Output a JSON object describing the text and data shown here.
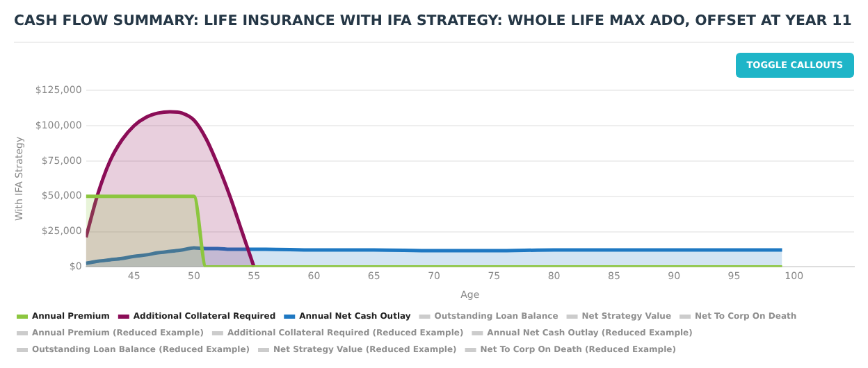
{
  "chart_data": {
    "type": "area",
    "title": "CASH FLOW SUMMARY: LIFE INSURANCE WITH IFA STRATEGY: WHOLE LIFE MAX ADO, OFFSET AT YEAR 11",
    "xlabel": "Age",
    "ylabel": "With IFA Strategy",
    "annotations": [
      "TOGGLE CALLOUTS"
    ],
    "x": [
      41,
      42,
      43,
      44,
      45,
      46,
      47,
      48,
      49,
      50,
      51,
      52,
      53,
      54,
      55,
      56,
      60,
      65,
      70,
      75,
      80,
      85,
      90,
      95,
      99
    ],
    "xlim": [
      41,
      105
    ],
    "xticks": [
      45,
      50,
      55,
      60,
      65,
      70,
      75,
      80,
      85,
      90,
      95,
      100
    ],
    "ylim": [
      0,
      125000
    ],
    "yticks": [
      {
        "value": 0,
        "label": "$0"
      },
      {
        "value": 25000,
        "label": "$25,000"
      },
      {
        "value": 50000,
        "label": "$50,000"
      },
      {
        "value": 75000,
        "label": "$75,000"
      },
      {
        "value": 100000,
        "label": "$100,000"
      },
      {
        "value": 125000,
        "label": "$125,000"
      }
    ],
    "grid": "y",
    "legend": "bottom",
    "marker": "none",
    "series": [
      {
        "name": "Annual Premium",
        "color": "#8cc63f",
        "values": [
          50000,
          50000,
          50000,
          50000,
          50000,
          50000,
          50000,
          50000,
          50000,
          50000,
          0,
          0,
          0,
          0,
          0,
          0,
          0,
          0,
          0,
          0,
          0,
          0,
          0,
          0,
          0
        ]
      },
      {
        "name": "Additional Collateral Required",
        "color": "#8b0d57",
        "values": [
          21000,
          52000,
          75000,
          90000,
          100000,
          106000,
          109000,
          110000,
          109000,
          104000,
          91000,
          72000,
          50000,
          25000,
          0,
          null,
          null,
          null,
          null,
          null,
          null,
          null,
          null,
          null,
          null
        ]
      },
      {
        "name": "Annual Net Cash Outlay",
        "color": "#1e78c2",
        "values": [
          2500,
          4000,
          5000,
          6000,
          7500,
          8500,
          10000,
          11000,
          12000,
          13500,
          13000,
          13000,
          12500,
          12500,
          12500,
          12500,
          12000,
          12000,
          11500,
          11500,
          12000,
          12000,
          12000,
          12000,
          12000
        ]
      },
      {
        "name": "Outstanding Loan Balance",
        "color": "#cccccc",
        "values": [
          null,
          null,
          null,
          null,
          null,
          null,
          null,
          null,
          null,
          null,
          null,
          null,
          null,
          null,
          null,
          null,
          null,
          null,
          null,
          null,
          null,
          null,
          null,
          null,
          null
        ]
      },
      {
        "name": "Net Strategy Value",
        "color": "#cccccc",
        "values": [
          null,
          null,
          null,
          null,
          null,
          null,
          null,
          null,
          null,
          null,
          null,
          null,
          null,
          null,
          null,
          null,
          null,
          null,
          null,
          null,
          null,
          null,
          null,
          null,
          null
        ]
      },
      {
        "name": "Net To Corp On Death",
        "color": "#cccccc",
        "values": [
          null,
          null,
          null,
          null,
          null,
          null,
          null,
          null,
          null,
          null,
          null,
          null,
          null,
          null,
          null,
          null,
          null,
          null,
          null,
          null,
          null,
          null,
          null,
          null,
          null
        ]
      },
      {
        "name": "Annual Premium (Reduced Example)",
        "color": "#cccccc",
        "values": [
          null,
          null,
          null,
          null,
          null,
          null,
          null,
          null,
          null,
          null,
          null,
          null,
          null,
          null,
          null,
          null,
          null,
          null,
          null,
          null,
          null,
          null,
          null,
          null,
          null
        ]
      },
      {
        "name": "Additional Collateral Required (Reduced Example)",
        "color": "#cccccc",
        "values": [
          null,
          null,
          null,
          null,
          null,
          null,
          null,
          null,
          null,
          null,
          null,
          null,
          null,
          null,
          null,
          null,
          null,
          null,
          null,
          null,
          null,
          null,
          null,
          null,
          null
        ]
      },
      {
        "name": "Annual Net Cash Outlay (Reduced Example)",
        "color": "#cccccc",
        "values": [
          null,
          null,
          null,
          null,
          null,
          null,
          null,
          null,
          null,
          null,
          null,
          null,
          null,
          null,
          null,
          null,
          null,
          null,
          null,
          null,
          null,
          null,
          null,
          null,
          null
        ]
      },
      {
        "name": "Outstanding Loan Balance (Reduced Example)",
        "color": "#cccccc",
        "values": [
          null,
          null,
          null,
          null,
          null,
          null,
          null,
          null,
          null,
          null,
          null,
          null,
          null,
          null,
          null,
          null,
          null,
          null,
          null,
          null,
          null,
          null,
          null,
          null,
          null
        ]
      },
      {
        "name": "Net Strategy Value (Reduced Example)",
        "color": "#cccccc",
        "values": [
          null,
          null,
          null,
          null,
          null,
          null,
          null,
          null,
          null,
          null,
          null,
          null,
          null,
          null,
          null,
          null,
          null,
          null,
          null,
          null,
          null,
          null,
          null,
          null,
          null
        ]
      },
      {
        "name": "Net To Corp On Death (Reduced Example)",
        "color": "#cccccc",
        "values": [
          null,
          null,
          null,
          null,
          null,
          null,
          null,
          null,
          null,
          null,
          null,
          null,
          null,
          null,
          null,
          null,
          null,
          null,
          null,
          null,
          null,
          null,
          null,
          null,
          null
        ]
      }
    ]
  }
}
